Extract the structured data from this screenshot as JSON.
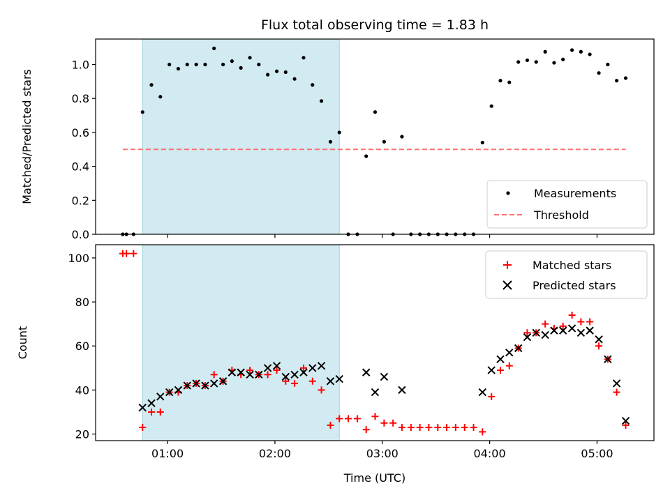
{
  "chart_data": [
    {
      "type": "scatter",
      "title": "Flux total observing time = 1.83 h",
      "xlabel": "",
      "ylabel": "Matched/Predicted stars",
      "xlim": [
        0.33,
        5.53
      ],
      "ylim": [
        0,
        1.15
      ],
      "y_ticks": [
        "0.0",
        "0.2",
        "0.4",
        "0.6",
        "0.8",
        "1.0"
      ],
      "y_tick_values": [
        0,
        0.2,
        0.4,
        0.6,
        0.8,
        1.0
      ],
      "x_tick_values": [
        1,
        2,
        3,
        4,
        5
      ],
      "shaded_interval": [
        0.767,
        2.6
      ],
      "shade_color": "#add8e6",
      "legend_position": "lower right",
      "legend": [
        "Measurements",
        "Threshold"
      ],
      "series": [
        {
          "name": "Measurements",
          "marker": "dot",
          "color": "#000000",
          "points": [
            [
              0.583,
              0.0
            ],
            [
              0.617,
              0.0
            ],
            [
              0.683,
              0.0
            ],
            [
              0.767,
              0.72
            ],
            [
              0.85,
              0.88
            ],
            [
              0.933,
              0.81
            ],
            [
              1.017,
              1.0
            ],
            [
              1.1,
              0.975
            ],
            [
              1.183,
              1.0
            ],
            [
              1.267,
              1.0
            ],
            [
              1.35,
              1.0
            ],
            [
              1.433,
              1.095
            ],
            [
              1.517,
              1.0
            ],
            [
              1.6,
              1.02
            ],
            [
              1.683,
              0.98
            ],
            [
              1.767,
              1.04
            ],
            [
              1.85,
              1.0
            ],
            [
              1.933,
              0.94
            ],
            [
              2.017,
              0.96
            ],
            [
              2.1,
              0.955
            ],
            [
              2.183,
              0.915
            ],
            [
              2.267,
              1.04
            ],
            [
              2.35,
              0.88
            ],
            [
              2.433,
              0.785
            ],
            [
              2.517,
              0.545
            ],
            [
              2.6,
              0.6
            ],
            [
              2.683,
              0.0
            ],
            [
              2.767,
              0.0
            ],
            [
              2.85,
              0.46
            ],
            [
              2.933,
              0.72
            ],
            [
              3.017,
              0.545
            ],
            [
              3.1,
              0.0
            ],
            [
              3.183,
              0.575
            ],
            [
              3.267,
              0.0
            ],
            [
              3.35,
              0.0
            ],
            [
              3.433,
              0.0
            ],
            [
              3.517,
              0.0
            ],
            [
              3.6,
              0.0
            ],
            [
              3.683,
              0.0
            ],
            [
              3.767,
              0.0
            ],
            [
              3.85,
              0.0
            ],
            [
              3.933,
              0.54
            ],
            [
              4.017,
              0.755
            ],
            [
              4.1,
              0.905
            ],
            [
              4.183,
              0.895
            ],
            [
              4.267,
              1.015
            ],
            [
              4.35,
              1.025
            ],
            [
              4.433,
              1.015
            ],
            [
              4.517,
              1.075
            ],
            [
              4.6,
              1.01
            ],
            [
              4.683,
              1.03
            ],
            [
              4.767,
              1.085
            ],
            [
              4.85,
              1.075
            ],
            [
              4.933,
              1.06
            ],
            [
              5.017,
              0.95
            ],
            [
              5.1,
              1.0
            ],
            [
              5.183,
              0.905
            ],
            [
              5.267,
              0.92
            ]
          ]
        },
        {
          "name": "Threshold",
          "marker": "dashed-line",
          "color": "#ff7070",
          "points": [
            [
              0.583,
              0.5
            ],
            [
              5.267,
              0.5
            ]
          ]
        }
      ]
    },
    {
      "type": "scatter",
      "title": "",
      "xlabel": "Time (UTC)",
      "ylabel": "Count",
      "xlim": [
        0.33,
        5.53
      ],
      "ylim": [
        17,
        106
      ],
      "y_ticks": [
        "20",
        "40",
        "60",
        "80",
        "100"
      ],
      "y_tick_values": [
        20,
        40,
        60,
        80,
        100
      ],
      "x_ticks": [
        "01:00",
        "02:00",
        "03:00",
        "04:00",
        "05:00"
      ],
      "x_tick_values": [
        1,
        2,
        3,
        4,
        5
      ],
      "shaded_interval": [
        0.767,
        2.6
      ],
      "shade_color": "#add8e6",
      "legend_position": "upper right",
      "legend": [
        "Matched stars",
        "Predicted stars"
      ],
      "series": [
        {
          "name": "Matched stars",
          "marker": "plus",
          "color": "#ff0000",
          "points": [
            [
              0.583,
              102
            ],
            [
              0.617,
              102
            ],
            [
              0.683,
              102
            ],
            [
              0.767,
              23
            ],
            [
              0.85,
              30
            ],
            [
              0.933,
              30
            ],
            [
              1.017,
              39
            ],
            [
              1.1,
              39
            ],
            [
              1.183,
              42
            ],
            [
              1.267,
              43
            ],
            [
              1.35,
              42
            ],
            [
              1.433,
              47
            ],
            [
              1.517,
              44
            ],
            [
              1.6,
              49
            ],
            [
              1.683,
              47
            ],
            [
              1.767,
              49
            ],
            [
              1.85,
              47
            ],
            [
              1.933,
              47
            ],
            [
              2.017,
              49
            ],
            [
              2.1,
              44
            ],
            [
              2.183,
              43
            ],
            [
              2.267,
              50
            ],
            [
              2.35,
              44
            ],
            [
              2.433,
              40
            ],
            [
              2.517,
              24
            ],
            [
              2.6,
              27
            ],
            [
              2.683,
              27
            ],
            [
              2.767,
              27
            ],
            [
              2.85,
              22
            ],
            [
              2.933,
              28
            ],
            [
              3.017,
              25
            ],
            [
              3.1,
              25
            ],
            [
              3.183,
              23
            ],
            [
              3.267,
              23
            ],
            [
              3.35,
              23
            ],
            [
              3.433,
              23
            ],
            [
              3.517,
              23
            ],
            [
              3.6,
              23
            ],
            [
              3.683,
              23
            ],
            [
              3.767,
              23
            ],
            [
              3.85,
              23
            ],
            [
              3.933,
              21
            ],
            [
              4.017,
              37
            ],
            [
              4.1,
              49
            ],
            [
              4.183,
              51
            ],
            [
              4.267,
              59
            ],
            [
              4.35,
              66
            ],
            [
              4.433,
              66
            ],
            [
              4.517,
              70
            ],
            [
              4.6,
              68
            ],
            [
              4.683,
              69
            ],
            [
              4.767,
              74
            ],
            [
              4.85,
              71
            ],
            [
              4.933,
              71
            ],
            [
              5.017,
              60
            ],
            [
              5.1,
              54
            ],
            [
              5.183,
              39
            ],
            [
              5.267,
              24
            ]
          ]
        },
        {
          "name": "Predicted stars",
          "marker": "x",
          "color": "#000000",
          "points": [
            [
              0.767,
              32
            ],
            [
              0.85,
              34
            ],
            [
              0.933,
              37
            ],
            [
              1.017,
              39
            ],
            [
              1.1,
              40
            ],
            [
              1.183,
              42
            ],
            [
              1.267,
              43
            ],
            [
              1.35,
              42
            ],
            [
              1.433,
              43
            ],
            [
              1.517,
              44
            ],
            [
              1.6,
              48
            ],
            [
              1.683,
              48
            ],
            [
              1.767,
              47
            ],
            [
              1.85,
              47
            ],
            [
              1.933,
              50
            ],
            [
              2.017,
              51
            ],
            [
              2.1,
              46
            ],
            [
              2.183,
              47
            ],
            [
              2.267,
              48
            ],
            [
              2.35,
              50
            ],
            [
              2.433,
              51
            ],
            [
              2.517,
              44
            ],
            [
              2.6,
              45
            ],
            [
              2.85,
              48
            ],
            [
              2.933,
              39
            ],
            [
              3.017,
              46
            ],
            [
              3.183,
              40
            ],
            [
              3.933,
              39
            ],
            [
              4.017,
              49
            ],
            [
              4.1,
              54
            ],
            [
              4.183,
              57
            ],
            [
              4.267,
              59
            ],
            [
              4.35,
              64
            ],
            [
              4.433,
              66
            ],
            [
              4.517,
              65
            ],
            [
              4.6,
              67
            ],
            [
              4.683,
              67
            ],
            [
              4.767,
              68
            ],
            [
              4.85,
              66
            ],
            [
              4.933,
              67
            ],
            [
              5.017,
              63
            ],
            [
              5.1,
              54
            ],
            [
              5.183,
              43
            ],
            [
              5.267,
              26
            ]
          ]
        }
      ]
    }
  ]
}
